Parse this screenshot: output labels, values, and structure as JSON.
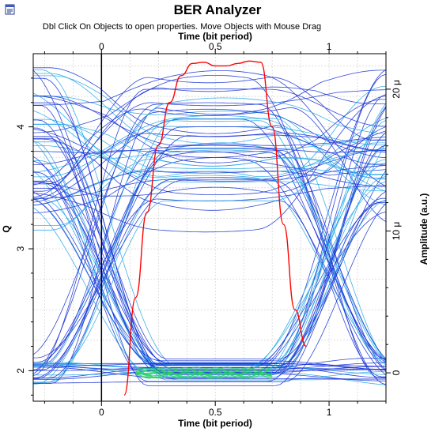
{
  "window": {
    "title": "BER Analyzer",
    "hint": "Dbl Click On Objects to open properties.  Move Objects with Mouse Drag"
  },
  "chart_data": {
    "type": "line",
    "title": "BER Analyzer",
    "subtitle": "Dbl Click On Objects to open properties.  Move Objects with Mouse Drag",
    "x_top_label": "Time (bit period)",
    "xlabel": "Time (bit period)",
    "ylabel_left": "Q",
    "ylabel_right": "Amplitude (a.u.)",
    "xlim": [
      -0.3,
      1.25
    ],
    "x_ticks": [
      0,
      0.5,
      1
    ],
    "x_tick_labels": [
      "0",
      "0.5",
      "1"
    ],
    "ylim_left": [
      1.75,
      4.6
    ],
    "y_left_ticks": [
      2,
      3,
      4
    ],
    "y_left_tick_labels": [
      "2",
      "3",
      "4"
    ],
    "ylim_right": [
      -2e-06,
      2.25e-05
    ],
    "y_right_ticks": [
      0,
      1e-05,
      2e-05
    ],
    "y_right_tick_labels": [
      "0",
      "10 μ",
      "20 μ"
    ],
    "grid": true,
    "colors": {
      "eye_traces": "#1a33d6",
      "eye_traces_light": "#2aa8e8",
      "eye_dense": "#22dd55",
      "q_curve": "#ff0000",
      "grid": "#c8c8c8"
    },
    "series": [
      {
        "x": [
          0.1,
          0.15,
          0.2,
          0.25,
          0.3,
          0.35,
          0.4,
          0.45,
          0.5,
          0.55,
          0.6,
          0.65,
          0.7,
          0.75,
          0.8,
          0.85,
          0.9
        ],
        "y": [
          1.8,
          2.6,
          3.3,
          3.85,
          4.2,
          4.42,
          4.52,
          4.53,
          4.5,
          4.5,
          4.52,
          4.54,
          4.53,
          4.0,
          3.2,
          2.5,
          2.2
        ]
      }
    ],
    "eye": {
      "ui_start": 0,
      "ui_end": 1,
      "levels_high": [
        3.95,
        4.05,
        4.1,
        4.2,
        4.3,
        4.45,
        3.85,
        3.75,
        3.7,
        3.6,
        3.5,
        3.4,
        3.3,
        3.2,
        3.9,
        4.0,
        3.65,
        3.55,
        3.45,
        3.8
      ],
      "levels_low": [
        1.9,
        1.95,
        2.0,
        2.02,
        2.05,
        2.08,
        2.1,
        1.93,
        1.97,
        2.03,
        2.0,
        2.06
      ],
      "levels_mid": [
        2.9,
        3.0
      ]
    }
  }
}
